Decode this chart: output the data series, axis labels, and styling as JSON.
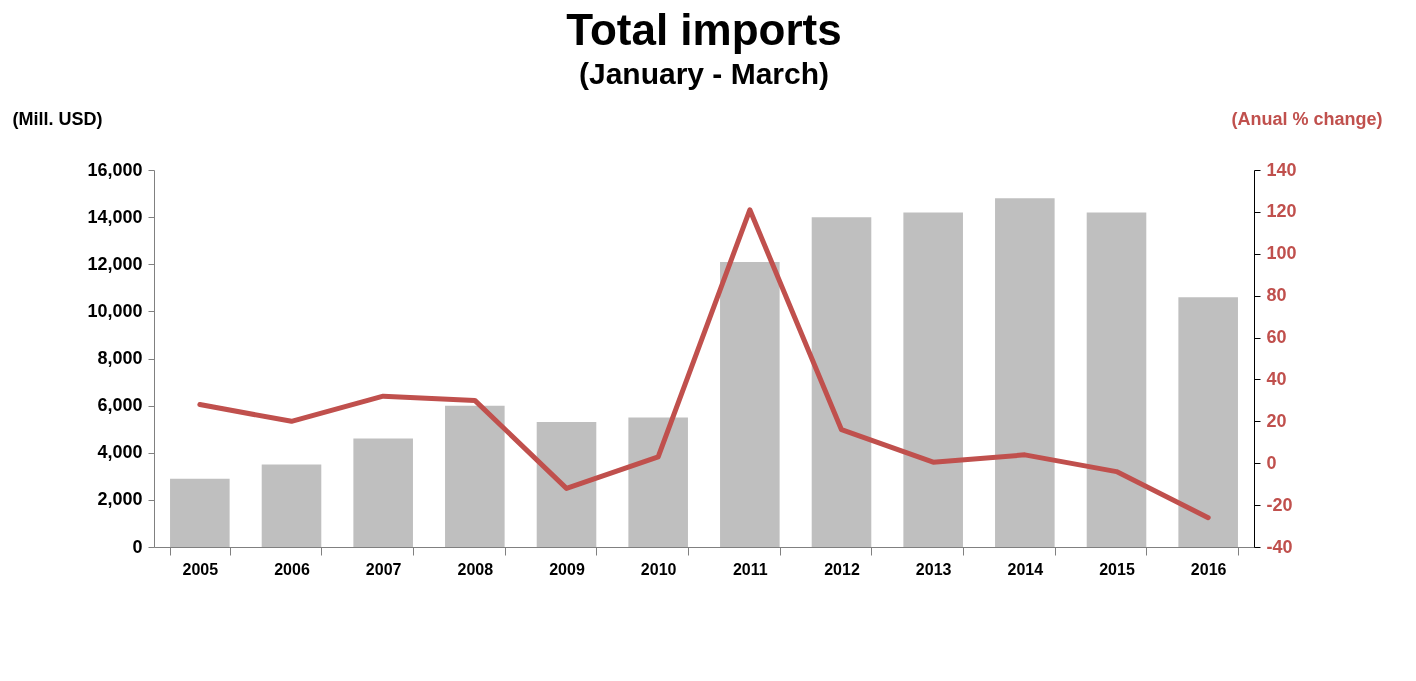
{
  "chart_data": {
    "type": "bar",
    "title": "Total imports",
    "subtitle": "(January - March)",
    "ylabel": "(Mill. USD)",
    "y2label": "(Anual % change)",
    "categories": [
      "2005",
      "2006",
      "2007",
      "2008",
      "2009",
      "2010",
      "2011",
      "2012",
      "2013",
      "2014",
      "2015",
      "2016"
    ],
    "series": [
      {
        "color": "#bfbfbf",
        "values": [
          2900,
          3500,
          4600,
          6000,
          5300,
          5500,
          12100,
          14000,
          14200,
          14800,
          14200,
          10600
        ]
      },
      {
        "type": "line",
        "axis": "y2",
        "color": "#c0504d",
        "values": [
          28,
          20,
          32,
          30,
          -12,
          3,
          121,
          16,
          0.5,
          4,
          -4,
          -26
        ]
      }
    ],
    "ylim": [
      0,
      16000
    ],
    "yticks": [
      0,
      {
        "value": 2000,
        "label": "2,000"
      },
      {
        "value": 4000,
        "label": "4,000"
      },
      {
        "value": 6000,
        "label": "6,000"
      },
      {
        "value": 8000,
        "label": "8,000"
      },
      {
        "value": 10000,
        "label": "10,000"
      },
      {
        "value": 12000,
        "label": "12,000"
      },
      {
        "value": 14000,
        "label": "14,000"
      },
      {
        "value": 16000,
        "label": "16,000"
      }
    ],
    "y2lim": [
      -40,
      140
    ],
    "y2ticks": [
      -40,
      -20,
      0,
      20,
      40,
      60,
      80,
      100,
      120,
      140
    ],
    "grid": false,
    "legend": false,
    "marker": "none",
    "line_style": "solid"
  }
}
